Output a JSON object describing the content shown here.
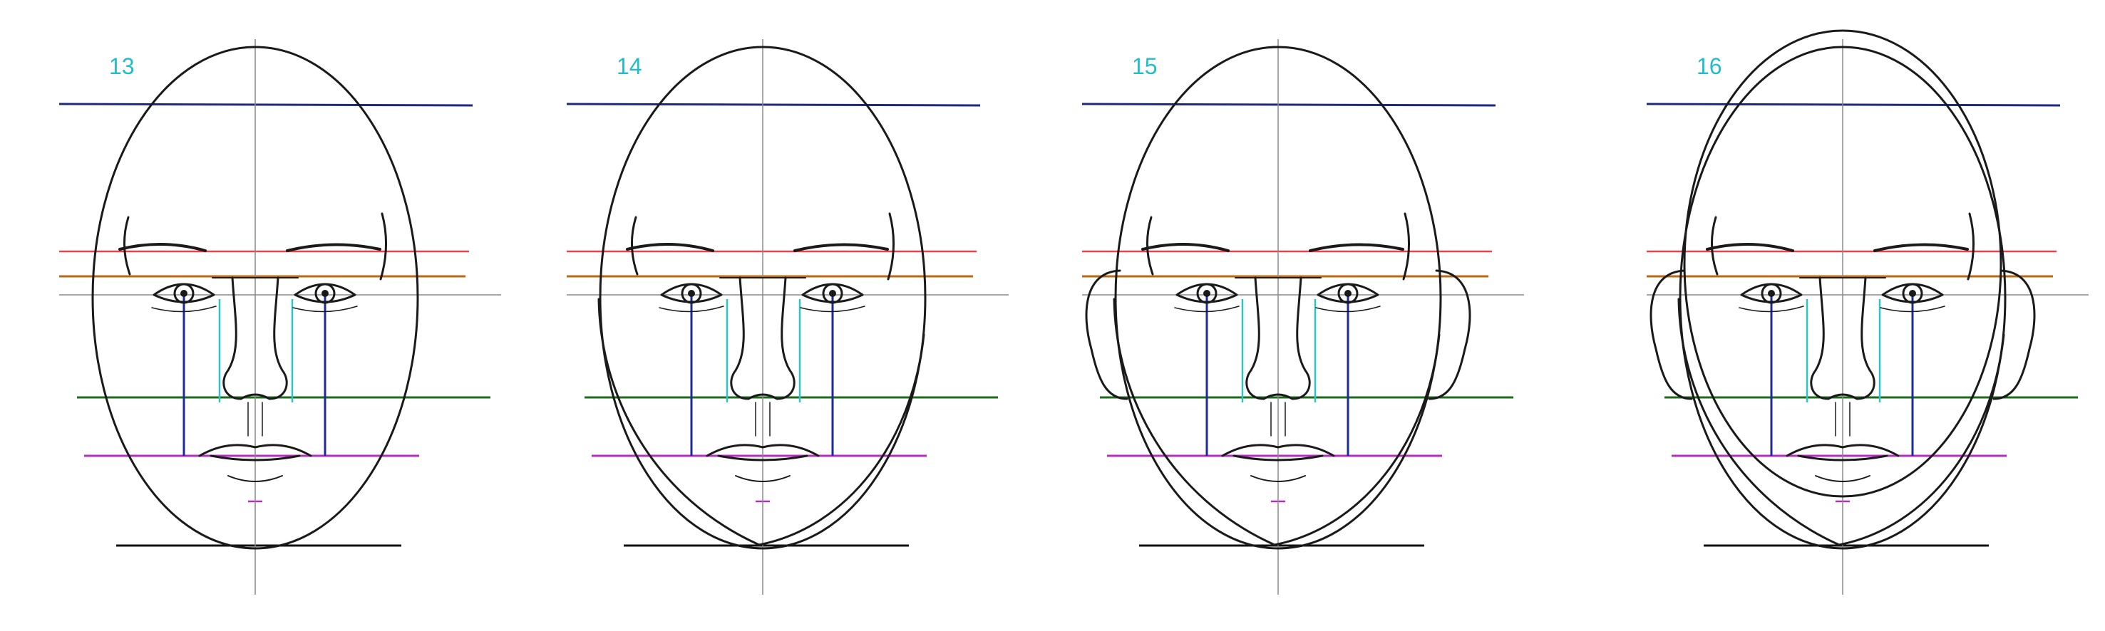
{
  "panels": [
    {
      "number": "13",
      "features": [
        "head-oval",
        "guidelines",
        "eyes",
        "nose",
        "mouth"
      ]
    },
    {
      "number": "14",
      "features": [
        "head-oval",
        "guidelines",
        "eyes",
        "nose",
        "mouth",
        "jaw-contour"
      ]
    },
    {
      "number": "15",
      "features": [
        "head-oval",
        "guidelines",
        "eyes",
        "nose",
        "mouth",
        "jaw-contour",
        "ears"
      ]
    },
    {
      "number": "16",
      "features": [
        "head-oval",
        "guidelines",
        "eyes",
        "nose",
        "mouth",
        "jaw-contour",
        "ears",
        "skull-outline"
      ]
    }
  ],
  "colors": {
    "panel_number": "#22bccc",
    "crown_line": "#1f2a7a",
    "brow_line": "#e8434a",
    "eye_line": "#b86a12",
    "nose_line": "#1e6b1e",
    "mouth_line": "#b32fc0",
    "chin_line": "#111111",
    "center_axis": "#8a8a8a",
    "eye_width_guides": "#1f2a9a",
    "nose_width_guides": "#2ec4c4",
    "sketch_stroke": "#1a1a1a"
  }
}
